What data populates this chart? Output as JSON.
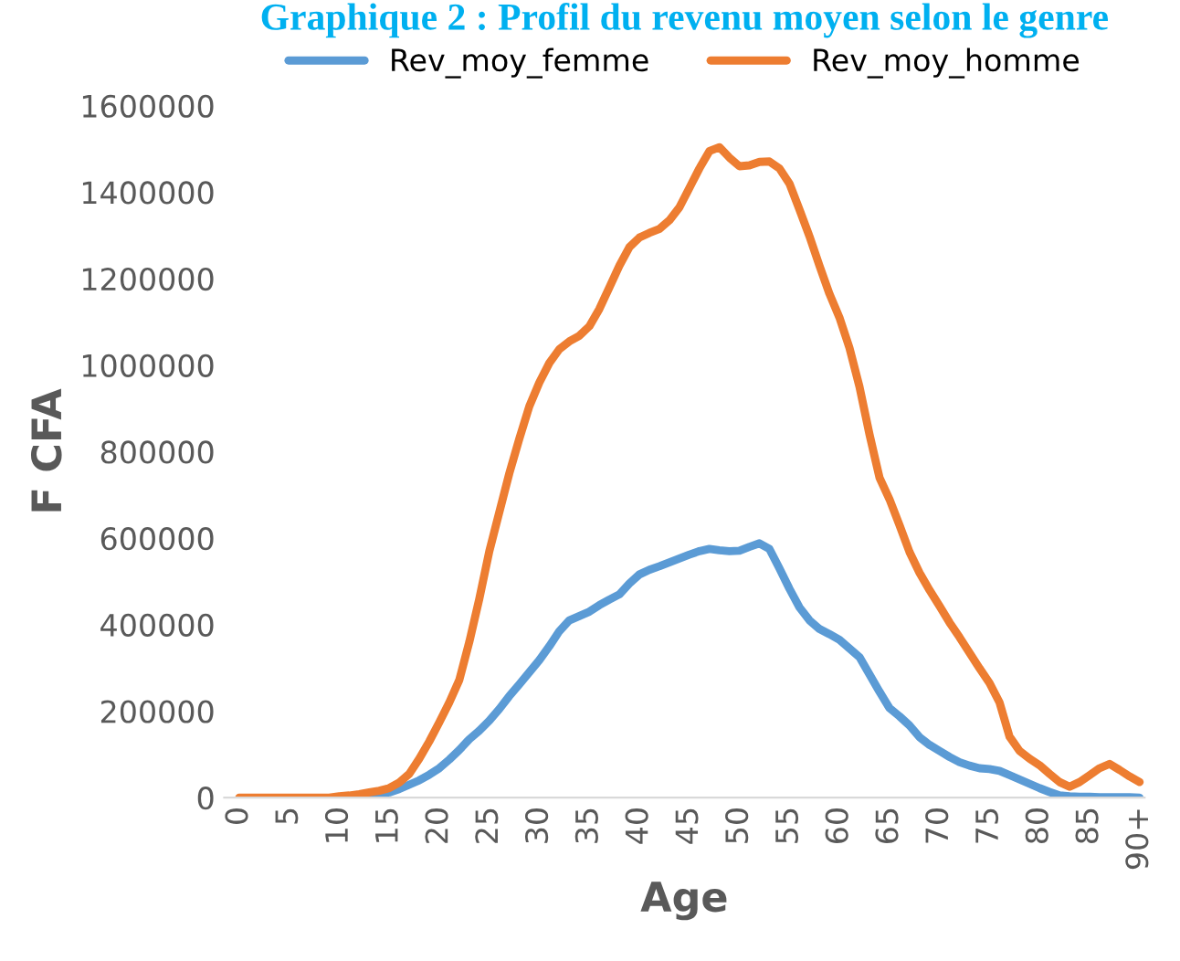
{
  "chart_data": {
    "type": "line",
    "title": "Graphique 2 : Profil du revenu moyen selon le genre",
    "xlabel": "Age",
    "ylabel": "F CFA",
    "categories": [
      "0",
      null,
      null,
      null,
      null,
      "5",
      null,
      null,
      null,
      null,
      "10",
      null,
      null,
      null,
      null,
      "15",
      null,
      null,
      null,
      null,
      "20",
      null,
      null,
      null,
      null,
      "25",
      null,
      null,
      null,
      null,
      "30",
      null,
      null,
      null,
      null,
      "35",
      null,
      null,
      null,
      null,
      "40",
      null,
      null,
      null,
      null,
      "45",
      null,
      null,
      null,
      null,
      "50",
      null,
      null,
      null,
      null,
      "55",
      null,
      null,
      null,
      null,
      "60",
      null,
      null,
      null,
      null,
      "65",
      null,
      null,
      null,
      null,
      "70",
      null,
      null,
      null,
      null,
      "75",
      null,
      null,
      null,
      null,
      "80",
      null,
      null,
      null,
      null,
      "85",
      null,
      null,
      null,
      null,
      "90+"
    ],
    "series": [
      {
        "name": "Rev_moy_femme",
        "color": "#5b9bd5",
        "values": [
          null,
          null,
          null,
          null,
          null,
          null,
          null,
          null,
          null,
          null,
          null,
          null,
          2000,
          4000,
          8000,
          12000,
          20000,
          30000,
          40000,
          53000,
          68000,
          88000,
          110000,
          135000,
          155000,
          178000,
          205000,
          235000,
          262000,
          290000,
          318000,
          350000,
          385000,
          410000,
          420000,
          430000,
          445000,
          458000,
          470000,
          495000,
          516000,
          527000,
          535000,
          544000,
          553000,
          562000,
          570000,
          575000,
          572000,
          570000,
          571000,
          580000,
          588000,
          575000,
          530000,
          483000,
          440000,
          410000,
          390000,
          378000,
          365000,
          345000,
          325000,
          285000,
          245000,
          207000,
          188000,
          167000,
          140000,
          122000,
          108000,
          94000,
          82000,
          74000,
          68000,
          66000,
          62000,
          52000,
          42000,
          32000,
          22000,
          13000,
          5000,
          3000,
          2000,
          2000,
          1000,
          1000,
          1000,
          1000,
          0
        ]
      },
      {
        "name": "Rev_moy_homme",
        "color": "#ed7d31",
        "values": [
          0,
          0,
          0,
          0,
          0,
          0,
          0,
          0,
          0,
          0,
          3000,
          5000,
          8000,
          12000,
          16000,
          22000,
          35000,
          55000,
          90000,
          130000,
          174000,
          220000,
          272000,
          360000,
          460000,
          570000,
          660000,
          750000,
          830000,
          905000,
          960000,
          1005000,
          1037000,
          1055000,
          1068000,
          1090000,
          1130000,
          1180000,
          1230000,
          1273000,
          1295000,
          1306000,
          1315000,
          1335000,
          1365000,
          1410000,
          1455000,
          1495000,
          1504000,
          1480000,
          1460000,
          1462000,
          1470000,
          1471000,
          1455000,
          1420000,
          1360000,
          1298000,
          1230000,
          1165000,
          1110000,
          1040000,
          950000,
          840000,
          740000,
          690000,
          630000,
          568000,
          520000,
          480000,
          443000,
          405000,
          371000,
          335000,
          299000,
          265000,
          220000,
          141000,
          108000,
          90000,
          75000,
          55000,
          36000,
          25000,
          36000,
          52000,
          68000,
          78000,
          64000,
          49000,
          36000
        ]
      }
    ],
    "ylim": [
      0,
      1600000
    ],
    "yticks": [
      0,
      200000,
      400000,
      600000,
      800000,
      1000000,
      1200000,
      1400000,
      1600000
    ],
    "grid": false,
    "legend": "top",
    "marker": "none",
    "line_style": "solid"
  }
}
